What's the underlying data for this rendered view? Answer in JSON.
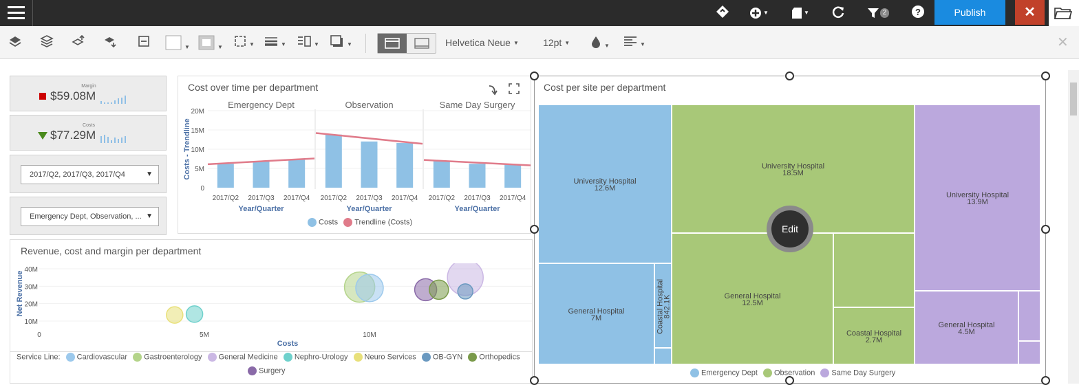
{
  "toolbar": {
    "filter_count": "2",
    "publish_label": "Publish",
    "close_label": "✕",
    "font_family": "Helvetica Neue",
    "font_size": "12pt"
  },
  "kpis": [
    {
      "label": "Margin",
      "value": "$59.08M",
      "indicator": "down-square",
      "indicator_color": "#cc0000"
    },
    {
      "label": "Costs",
      "value": "$77.29M",
      "indicator": "down-triangle",
      "indicator_color": "#4a8a1c"
    }
  ],
  "filters": {
    "quarters": "2017/Q2, 2017/Q3, 2017/Q4",
    "departments": "Emergency Dept, Observation, ..."
  },
  "bar_panel": {
    "title": "Cost over time per department",
    "ylabel": "Costs - Trendline",
    "xlabel": "Year/Quarter",
    "legend": [
      "Costs",
      "Trendline (Costs)"
    ]
  },
  "bubble_panel": {
    "title": "Revenue, cost and margin per department",
    "ylabel": "Net Revenue",
    "xlabel": "Costs",
    "legend_title": "Service Line:",
    "legend": [
      "Cardiovascular",
      "Gastroenterology",
      "General Medicine",
      "Nephro-Urology",
      "Neuro Services",
      "OB-GYN",
      "Orthopedics",
      "Surgery"
    ]
  },
  "treemap_panel": {
    "title": "Cost per site per department",
    "edit_label": "Edit",
    "legend": [
      "Emergency Dept",
      "Observation",
      "Same Day Surgery"
    ]
  },
  "chart_data": [
    {
      "type": "bar",
      "title": "Cost over time per department",
      "ylabel": "Costs - Trendline",
      "xlabel": "Year/Quarter",
      "yticks": [
        "0",
        "5M",
        "10M",
        "15M",
        "20M"
      ],
      "ylim": [
        0,
        20
      ],
      "panels": [
        {
          "name": "Emergency Dept",
          "categories": [
            "2017/Q2",
            "2017/Q3",
            "2017/Q4"
          ],
          "values": [
            6.2,
            6.8,
            7.4
          ],
          "trend": [
            6.1,
            7.6
          ]
        },
        {
          "name": "Observation",
          "categories": [
            "2017/Q2",
            "2017/Q3",
            "2017/Q4"
          ],
          "values": [
            13.8,
            12.0,
            11.6
          ],
          "trend": [
            14.2,
            11.4
          ]
        },
        {
          "name": "Same Day Surgery",
          "categories": [
            "2017/Q2",
            "2017/Q3",
            "2017/Q4"
          ],
          "values": [
            6.9,
            6.2,
            6.0
          ],
          "trend": [
            7.2,
            5.8
          ]
        }
      ],
      "series_colors": {
        "Costs": "#8fc1e5",
        "Trendline (Costs)": "#e07b8a"
      }
    },
    {
      "type": "scatter",
      "title": "Revenue, cost and margin per department",
      "xlabel": "Costs",
      "ylabel": "Net Revenue",
      "xticks": [
        "0",
        "5M",
        "10M"
      ],
      "yticks": [
        "10M",
        "20M",
        "30M",
        "40M"
      ],
      "xlim": [
        0,
        14.5
      ],
      "ylim": [
        10,
        40
      ],
      "points": [
        {
          "series": "Neuro Services",
          "x": 4.1,
          "y": 13.5,
          "r": 12,
          "color": "#e8e07a"
        },
        {
          "series": "Nephro-Urology",
          "x": 4.7,
          "y": 14,
          "r": 12,
          "color": "#6fd1cc"
        },
        {
          "series": "Gastroenterology",
          "x": 9.7,
          "y": 29.5,
          "r": 22,
          "color": "#b4d48a"
        },
        {
          "series": "Cardiovascular",
          "x": 10.0,
          "y": 29,
          "r": 20,
          "color": "#9cc9ec"
        },
        {
          "series": "Surgery",
          "x": 11.7,
          "y": 28,
          "r": 16,
          "color": "#8a6aa8"
        },
        {
          "series": "Orthopedics",
          "x": 12.1,
          "y": 28,
          "r": 14,
          "color": "#7a9a4a"
        },
        {
          "series": "General Medicine",
          "x": 12.9,
          "y": 35,
          "r": 26,
          "color": "#cbb8e4"
        },
        {
          "series": "OB-GYN",
          "x": 12.9,
          "y": 27,
          "r": 11,
          "color": "#6a99c0"
        }
      ]
    },
    {
      "type": "treemap",
      "title": "Cost per site per department",
      "groups": [
        {
          "name": "Emergency Dept",
          "color": "#8fc1e5",
          "items": [
            {
              "name": "University Hospital",
              "value": "12.6M"
            },
            {
              "name": "General Hospital",
              "value": "7M"
            },
            {
              "name": "Coastal Hospital",
              "value": "842.1K"
            }
          ]
        },
        {
          "name": "Observation",
          "color": "#a8c878",
          "items": [
            {
              "name": "University Hospital",
              "value": "18.5M"
            },
            {
              "name": "General Hospital",
              "value": "12.5M"
            },
            {
              "name": "Coastal Hospital",
              "value": "2.7M"
            }
          ]
        },
        {
          "name": "Same Day Surgery",
          "color": "#bba8dd",
          "items": [
            {
              "name": "University Hospital",
              "value": "13.9M"
            },
            {
              "name": "General Hospital",
              "value": "4.5M"
            }
          ]
        }
      ]
    }
  ]
}
